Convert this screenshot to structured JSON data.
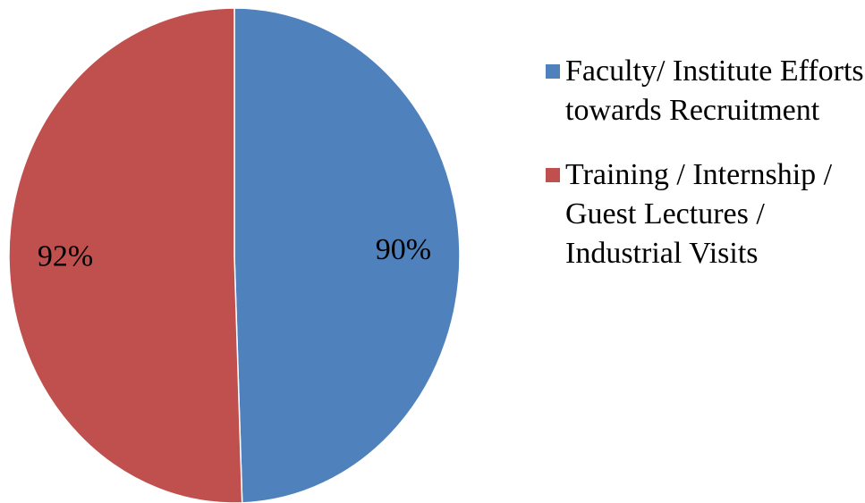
{
  "chart_data": {
    "type": "pie",
    "categories": [
      "Faculty/ Institute Efforts towards Recruitment",
      "Training / Internship / Guest Lectures / Industrial Visits"
    ],
    "values": [
      90,
      92
    ],
    "value_labels": [
      "90%",
      "92%"
    ],
    "colors": [
      "#4f81bd",
      "#c0504d"
    ]
  }
}
